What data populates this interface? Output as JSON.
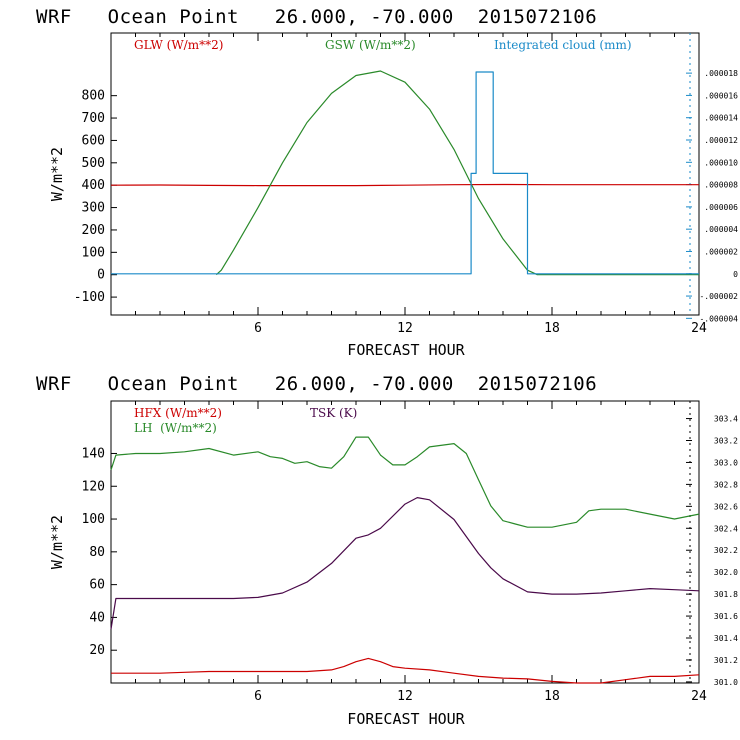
{
  "colors": {
    "red": "#cc0000",
    "green": "#2a8a2a",
    "blue": "#1a8ac8",
    "purple": "#4a0a4a"
  },
  "chart_data": [
    {
      "type": "line",
      "title": "WRF   Ocean Point   26.000, -70.000  2015072106",
      "xlabel": "FORECAST HOUR",
      "ylabel": "W/m**2",
      "xlim": [
        0,
        24
      ],
      "ylim": [
        -180,
        1080
      ],
      "x_ticks": [
        "6",
        "12",
        "18",
        "24"
      ],
      "y_ticks": [
        "800",
        "700",
        "600",
        "500",
        "400",
        "300",
        "200",
        "100",
        "0",
        "-100"
      ],
      "y_tick_values": [
        800,
        700,
        600,
        500,
        400,
        300,
        200,
        100,
        0,
        -100
      ],
      "right_axis": {
        "ticks": [
          ".000018",
          ".000016",
          ".000014",
          ".000012",
          ".000010",
          ".000008",
          ".000006",
          ".000004",
          ".000002",
          "0",
          "-.000002",
          "-.000004"
        ],
        "tick_values": [
          1.8e-05,
          1.6e-05,
          1.4e-05,
          1.2e-05,
          1e-05,
          8e-06,
          6e-06,
          4e-06,
          2e-06,
          0,
          -2e-06,
          -4e-06
        ],
        "range": [
          -3.7e-06,
          2.16e-05
        ]
      },
      "legend": [
        {
          "label": "GLW (W/m**2)",
          "color_key": "red"
        },
        {
          "label": "GSW (W/m**2)",
          "color_key": "green"
        },
        {
          "label": "Integrated cloud (mm)",
          "color_key": "blue"
        }
      ],
      "series": [
        {
          "name": "GLW",
          "color_key": "red",
          "axis": "left",
          "x": [
            0,
            2,
            4,
            6,
            8,
            10,
            12,
            14,
            16,
            18,
            20,
            22,
            24
          ],
          "y": [
            400,
            401,
            399,
            398,
            398,
            398,
            400,
            402,
            403,
            402,
            402,
            402,
            402
          ]
        },
        {
          "name": "GSW",
          "color_key": "green",
          "axis": "left",
          "x": [
            4.3,
            4.5,
            5,
            6,
            7,
            8,
            9,
            10,
            11,
            12,
            13,
            14,
            15,
            16,
            17,
            17.4,
            18,
            24
          ],
          "y": [
            0,
            20,
            110,
            300,
            500,
            680,
            810,
            890,
            910,
            860,
            740,
            560,
            340,
            160,
            20,
            0,
            0,
            0
          ]
        },
        {
          "name": "Integrated cloud",
          "color_key": "blue",
          "axis": "right",
          "step": true,
          "x": [
            0,
            14.7,
            14.7,
            14.9,
            14.9,
            15.6,
            15.6,
            17.0,
            17.0,
            24
          ],
          "y": [
            0,
            0,
            9e-06,
            9e-06,
            1.81e-05,
            1.81e-05,
            9e-06,
            9e-06,
            0,
            0
          ]
        }
      ]
    },
    {
      "type": "line",
      "title": "WRF   Ocean Point   26.000, -70.000  2015072106",
      "xlabel": "FORECAST HOUR",
      "ylabel": "W/m**2",
      "xlim": [
        0,
        24
      ],
      "ylim": [
        0,
        172
      ],
      "x_ticks": [
        "6",
        "12",
        "18",
        "24"
      ],
      "y_ticks": [
        "140",
        "120",
        "100",
        "80",
        "60",
        "40",
        "20"
      ],
      "y_tick_values": [
        140,
        120,
        100,
        80,
        60,
        40,
        20
      ],
      "right_axis": {
        "ticks": [
          "303.4",
          "303.2",
          "303.0",
          "302.8",
          "302.6",
          "302.4",
          "302.2",
          "302.0",
          "301.8",
          "301.6",
          "301.4",
          "301.2",
          "301.0"
        ],
        "tick_values": [
          303.4,
          303.2,
          303.0,
          302.8,
          302.6,
          302.4,
          302.2,
          302.0,
          301.8,
          301.6,
          301.4,
          301.2,
          301.0
        ],
        "range": [
          300.99,
          303.56
        ]
      },
      "legend": [
        {
          "label": "HFX (W/m**2)",
          "color_key": "red"
        },
        {
          "label": "TSK (K)",
          "color_key": "purple"
        },
        {
          "label": "LH  (W/m**2)",
          "color_key": "green"
        }
      ],
      "series": [
        {
          "name": "HFX",
          "color_key": "red",
          "axis": "left",
          "x": [
            0,
            1,
            2,
            3,
            4,
            5,
            6,
            7,
            8,
            9,
            9.5,
            10,
            10.5,
            11,
            11.5,
            12,
            13,
            14,
            15,
            16,
            17,
            18,
            19,
            20,
            21,
            22,
            23,
            24
          ],
          "y": [
            6,
            6,
            6,
            6.5,
            7,
            7,
            7,
            7,
            7,
            8,
            10,
            13,
            15,
            13,
            10,
            9,
            8,
            6,
            4,
            3,
            2.5,
            1,
            0,
            0,
            2,
            4,
            4,
            5
          ]
        },
        {
          "name": "LH",
          "color_key": "green",
          "axis": "left",
          "x": [
            0,
            0.2,
            1,
            2,
            3,
            4,
            5,
            6,
            6.5,
            7,
            7.5,
            8,
            8.5,
            9,
            9.5,
            10,
            10.5,
            11,
            11.5,
            12,
            12.5,
            13,
            14,
            14.5,
            15,
            15.5,
            16,
            16.5,
            17,
            18,
            19,
            19.5,
            20,
            21,
            22,
            23,
            24
          ],
          "y": [
            130,
            139,
            140,
            140,
            141,
            143,
            139,
            141,
            138,
            137,
            134,
            135,
            132,
            131,
            138,
            150,
            150,
            139,
            133,
            133,
            138,
            144,
            146,
            140,
            124,
            108,
            99,
            97,
            95,
            95,
            98,
            105,
            106,
            106,
            103,
            100,
            103
          ]
        },
        {
          "name": "TSK",
          "color_key": "purple",
          "axis": "right",
          "x": [
            0,
            0.2,
            1,
            2,
            3,
            4,
            5,
            6,
            7,
            8,
            9,
            10,
            10.5,
            11,
            12,
            12.5,
            13,
            14,
            15,
            15.5,
            16,
            17,
            18,
            19,
            20,
            21,
            22,
            23,
            24
          ],
          "y": [
            301.48,
            301.76,
            301.76,
            301.76,
            301.76,
            301.76,
            301.76,
            301.77,
            301.81,
            301.91,
            302.08,
            302.31,
            302.34,
            302.4,
            302.62,
            302.68,
            302.66,
            302.48,
            302.17,
            302.04,
            301.94,
            301.82,
            301.8,
            301.8,
            301.81,
            301.83,
            301.85,
            301.84,
            301.83
          ]
        }
      ]
    }
  ]
}
